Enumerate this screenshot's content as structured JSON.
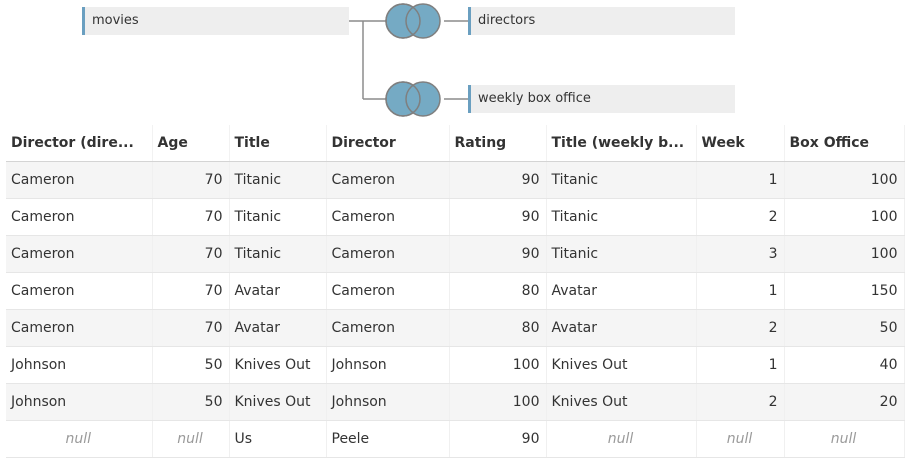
{
  "join": {
    "tables": {
      "movies": "movies",
      "directors": "directors",
      "weekly": "weekly box office"
    },
    "venn_colors": {
      "fill": "#75aac4",
      "stroke": "#7f7f7f",
      "accent": "#6a9fc0"
    }
  },
  "grid": {
    "columns": [
      {
        "label": "Director (dire...",
        "align": "left"
      },
      {
        "label": "Age",
        "align": "right"
      },
      {
        "label": "Title",
        "align": "left"
      },
      {
        "label": "Director",
        "align": "left"
      },
      {
        "label": "Rating",
        "align": "right"
      },
      {
        "label": "Title (weekly b...",
        "align": "left"
      },
      {
        "label": "Week",
        "align": "right"
      },
      {
        "label": "Box Office",
        "align": "right"
      }
    ],
    "rows": [
      [
        "Cameron",
        "70",
        "Titanic",
        "Cameron",
        "90",
        "Titanic",
        "1",
        "100"
      ],
      [
        "Cameron",
        "70",
        "Titanic",
        "Cameron",
        "90",
        "Titanic",
        "2",
        "100"
      ],
      [
        "Cameron",
        "70",
        "Titanic",
        "Cameron",
        "90",
        "Titanic",
        "3",
        "100"
      ],
      [
        "Cameron",
        "70",
        "Avatar",
        "Cameron",
        "80",
        "Avatar",
        "1",
        "150"
      ],
      [
        "Cameron",
        "70",
        "Avatar",
        "Cameron",
        "80",
        "Avatar",
        "2",
        "50"
      ],
      [
        "Johnson",
        "50",
        "Knives Out",
        "Johnson",
        "100",
        "Knives Out",
        "1",
        "40"
      ],
      [
        "Johnson",
        "50",
        "Knives Out",
        "Johnson",
        "100",
        "Knives Out",
        "2",
        "20"
      ],
      [
        "null",
        "null",
        "Us",
        "Peele",
        "90",
        "null",
        "null",
        "null"
      ]
    ],
    "null_text": "null"
  }
}
